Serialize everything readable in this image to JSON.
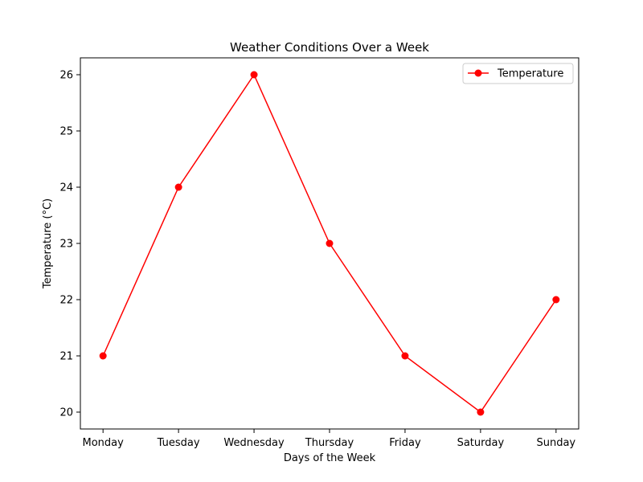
{
  "chart_data": {
    "type": "line",
    "title": "Weather Conditions Over a Week",
    "xlabel": "Days of the Week",
    "ylabel": "Temperature (°C)",
    "categories": [
      "Monday",
      "Tuesday",
      "Wednesday",
      "Thursday",
      "Friday",
      "Saturday",
      "Sunday"
    ],
    "series": [
      {
        "name": "Temperature",
        "values": [
          21,
          24,
          26,
          23,
          21,
          20,
          22
        ],
        "color": "#ff0000",
        "marker": "circle"
      }
    ],
    "ylim": [
      19.7,
      26.3
    ],
    "yticks": [
      20,
      21,
      22,
      23,
      24,
      25,
      26
    ],
    "grid": false,
    "legend": "upper-right"
  }
}
